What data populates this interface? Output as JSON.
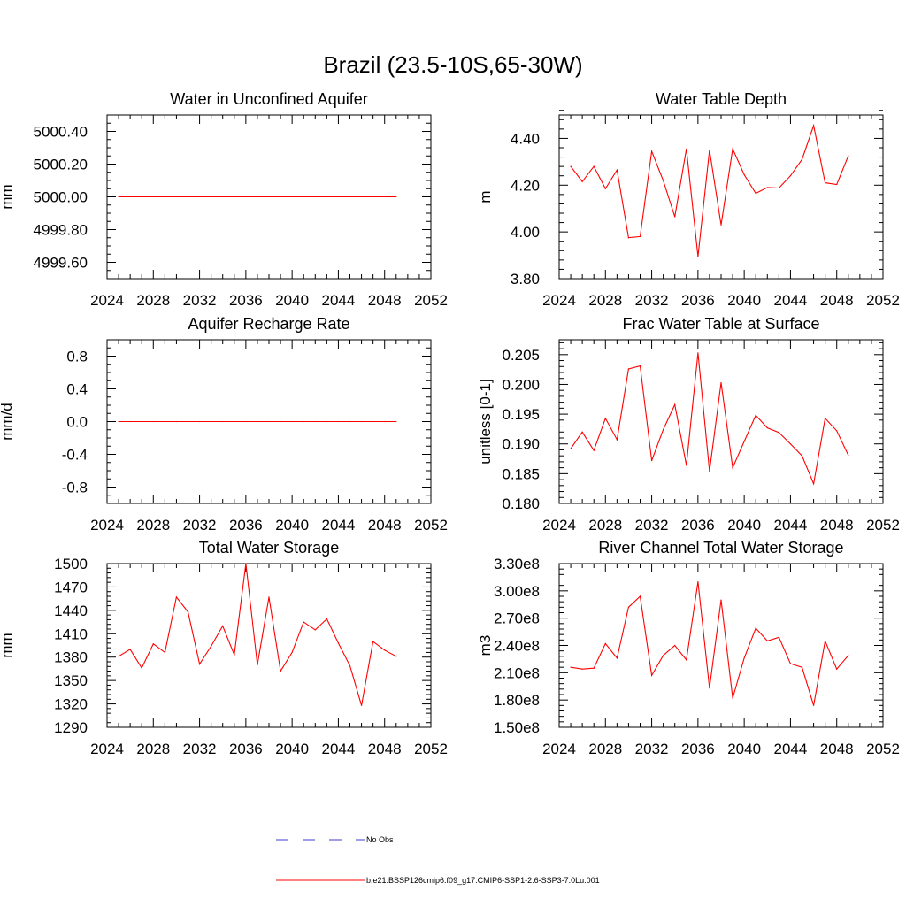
{
  "title": "Brazil (23.5-10S,65-30W)",
  "colors": {
    "model": "#ff0000",
    "obs": "#3b3bd0",
    "axis": "#000000"
  },
  "legend": {
    "entries": [
      {
        "label": "No Obs",
        "style": "dashed",
        "color": "#3b3bd0"
      },
      {
        "label": "b.e21.BSSP126cmip6.f09_g17.CMIP6-SSP1-2.6-SSP3-7.0Lu.001",
        "style": "solid",
        "color": "#ff0000"
      }
    ]
  },
  "chart_data": [
    {
      "type": "line",
      "title": "Water in Unconfined Aquifer",
      "ylabel": "mm",
      "xlim": [
        2024,
        2052
      ],
      "xticks": [
        "2024",
        "2028",
        "2032",
        "2036",
        "2040",
        "2044",
        "2048",
        "2052"
      ],
      "ylim": [
        4999.5,
        5000.5
      ],
      "yticks": [
        {
          "v": 4999.6,
          "label": "4999.60"
        },
        {
          "v": 4999.8,
          "label": "4999.80"
        },
        {
          "v": 5000.0,
          "label": "5000.00"
        },
        {
          "v": 5000.2,
          "label": "5000.20"
        },
        {
          "v": 5000.4,
          "label": "5000.40"
        }
      ],
      "yminor": 0.05,
      "x": [
        2025,
        2026,
        2027,
        2028,
        2029,
        2030,
        2031,
        2032,
        2033,
        2034,
        2035,
        2036,
        2037,
        2038,
        2039,
        2040,
        2041,
        2042,
        2043,
        2044,
        2045,
        2046,
        2047,
        2048,
        2049
      ],
      "series": [
        {
          "values": [
            5000,
            5000,
            5000,
            5000,
            5000,
            5000,
            5000,
            5000,
            5000,
            5000,
            5000,
            5000,
            5000,
            5000,
            5000,
            5000,
            5000,
            5000,
            5000,
            5000,
            5000,
            5000,
            5000,
            5000,
            5000
          ]
        }
      ]
    },
    {
      "type": "line",
      "title": "Water Table Depth",
      "ylabel": "m",
      "xlim": [
        2024,
        2052
      ],
      "xticks": [
        "2024",
        "2028",
        "2032",
        "2036",
        "2040",
        "2044",
        "2048",
        "2052"
      ],
      "ylim": [
        3.8,
        4.5
      ],
      "yticks": [
        {
          "v": 3.8,
          "label": "3.80"
        },
        {
          "v": 4.0,
          "label": "4.00"
        },
        {
          "v": 4.2,
          "label": "4.20"
        },
        {
          "v": 4.4,
          "label": "4.40"
        }
      ],
      "yminor": 0.04,
      "x": [
        2025,
        2026,
        2027,
        2028,
        2029,
        2030,
        2031,
        2032,
        2033,
        2034,
        2035,
        2036,
        2037,
        2038,
        2039,
        2040,
        2041,
        2042,
        2043,
        2044,
        2045,
        2046,
        2047,
        2048,
        2049
      ],
      "series": [
        {
          "values": [
            4.28,
            4.215,
            4.28,
            4.185,
            4.265,
            3.975,
            3.98,
            4.345,
            4.22,
            4.065,
            4.355,
            3.895,
            4.35,
            4.03,
            4.355,
            4.245,
            4.165,
            4.19,
            4.188,
            4.24,
            4.31,
            4.455,
            4.21,
            4.203,
            4.325
          ]
        }
      ]
    },
    {
      "type": "line",
      "title": "Aquifer Recharge Rate",
      "ylabel": "mm/d",
      "xlim": [
        2024,
        2052
      ],
      "xticks": [
        "2024",
        "2028",
        "2032",
        "2036",
        "2040",
        "2044",
        "2048",
        "2052"
      ],
      "ylim": [
        -1.0,
        1.0
      ],
      "yticks": [
        {
          "v": -0.8,
          "label": "-0.8"
        },
        {
          "v": -0.4,
          "label": "-0.4"
        },
        {
          "v": 0.0,
          "label": "0.0"
        },
        {
          "v": 0.4,
          "label": "0.4"
        },
        {
          "v": 0.8,
          "label": "0.8"
        }
      ],
      "yminor": 0.1,
      "x": [
        2025,
        2026,
        2027,
        2028,
        2029,
        2030,
        2031,
        2032,
        2033,
        2034,
        2035,
        2036,
        2037,
        2038,
        2039,
        2040,
        2041,
        2042,
        2043,
        2044,
        2045,
        2046,
        2047,
        2048,
        2049
      ],
      "series": [
        {
          "values": [
            0,
            0,
            0,
            0,
            0,
            0,
            0,
            0,
            0,
            0,
            0,
            0,
            0,
            0,
            0,
            0,
            0,
            0,
            0,
            0,
            0,
            0,
            0,
            0,
            0
          ]
        }
      ]
    },
    {
      "type": "line",
      "title": "Frac Water Table at Surface",
      "ylabel": "unitless [0-1]",
      "xlim": [
        2024,
        2052
      ],
      "xticks": [
        "2024",
        "2028",
        "2032",
        "2036",
        "2040",
        "2044",
        "2048",
        "2052"
      ],
      "ylim": [
        0.18,
        0.2075
      ],
      "yticks": [
        {
          "v": 0.18,
          "label": "0.180"
        },
        {
          "v": 0.185,
          "label": "0.185"
        },
        {
          "v": 0.19,
          "label": "0.190"
        },
        {
          "v": 0.195,
          "label": "0.195"
        },
        {
          "v": 0.2,
          "label": "0.200"
        },
        {
          "v": 0.205,
          "label": "0.205"
        }
      ],
      "yminor": 0.001,
      "x": [
        2025,
        2026,
        2027,
        2028,
        2029,
        2030,
        2031,
        2032,
        2033,
        2034,
        2035,
        2036,
        2037,
        2038,
        2039,
        2040,
        2041,
        2042,
        2043,
        2044,
        2045,
        2046,
        2047,
        2048,
        2049
      ],
      "series": [
        {
          "values": [
            0.1892,
            0.192,
            0.1889,
            0.1943,
            0.1907,
            0.2026,
            0.2031,
            0.1872,
            0.1924,
            0.1966,
            0.1864,
            0.2053,
            0.1854,
            0.2003,
            0.186,
            0.1904,
            0.1948,
            0.1927,
            0.1919,
            0.19,
            0.188,
            0.1833,
            0.1943,
            0.1922,
            0.1881
          ]
        }
      ]
    },
    {
      "type": "line",
      "title": "Total Water Storage",
      "ylabel": "mm",
      "xlim": [
        2024,
        2052
      ],
      "xticks": [
        "2024",
        "2028",
        "2032",
        "2036",
        "2040",
        "2044",
        "2048",
        "2052"
      ],
      "ylim": [
        1290,
        1500
      ],
      "yticks": [
        {
          "v": 1290,
          "label": "1290"
        },
        {
          "v": 1320,
          "label": "1320"
        },
        {
          "v": 1350,
          "label": "1350"
        },
        {
          "v": 1380,
          "label": "1380"
        },
        {
          "v": 1410,
          "label": "1410"
        },
        {
          "v": 1440,
          "label": "1440"
        },
        {
          "v": 1470,
          "label": "1470"
        },
        {
          "v": 1500,
          "label": "1500"
        }
      ],
      "yminor": 6,
      "x": [
        2025,
        2026,
        2027,
        2028,
        2029,
        2030,
        2031,
        2032,
        2033,
        2034,
        2035,
        2036,
        2037,
        2038,
        2039,
        2040,
        2041,
        2042,
        2043,
        2044,
        2045,
        2046,
        2047,
        2048,
        2049
      ],
      "series": [
        {
          "values": [
            1381,
            1390,
            1366,
            1397,
            1386,
            1457,
            1438,
            1371,
            1394,
            1420,
            1383,
            1500,
            1370,
            1457,
            1362,
            1386,
            1425,
            1415,
            1429,
            1398,
            1369,
            1318,
            1400,
            1389,
            1381
          ]
        }
      ]
    },
    {
      "type": "line",
      "title": "River Channel Total Water Storage",
      "ylabel": "m3",
      "xlim": [
        2024,
        2052
      ],
      "xticks": [
        "2024",
        "2028",
        "2032",
        "2036",
        "2040",
        "2044",
        "2048",
        "2052"
      ],
      "ylim": [
        150000000,
        330000000
      ],
      "yticks": [
        {
          "v": 150000000,
          "label": "1.50e8"
        },
        {
          "v": 180000000,
          "label": "1.80e8"
        },
        {
          "v": 210000000,
          "label": "2.10e8"
        },
        {
          "v": 240000000,
          "label": "2.40e8"
        },
        {
          "v": 270000000,
          "label": "2.70e8"
        },
        {
          "v": 300000000,
          "label": "3.00e8"
        },
        {
          "v": 330000000,
          "label": "3.30e8"
        }
      ],
      "yminor": 6000000,
      "x": [
        2025,
        2026,
        2027,
        2028,
        2029,
        2030,
        2031,
        2032,
        2033,
        2034,
        2035,
        2036,
        2037,
        2038,
        2039,
        2040,
        2041,
        2042,
        2043,
        2044,
        2045,
        2046,
        2047,
        2048,
        2049
      ],
      "series": [
        {
          "values": [
            216000000,
            214000000,
            215000000,
            242000000,
            226000000,
            282000000,
            294000000,
            207000000,
            229000000,
            240000000,
            224000000,
            310000000,
            193000000,
            290000000,
            182000000,
            226000000,
            259000000,
            245000000,
            249000000,
            220000000,
            216000000,
            174000000,
            245000000,
            214000000,
            229000000
          ]
        }
      ]
    }
  ]
}
